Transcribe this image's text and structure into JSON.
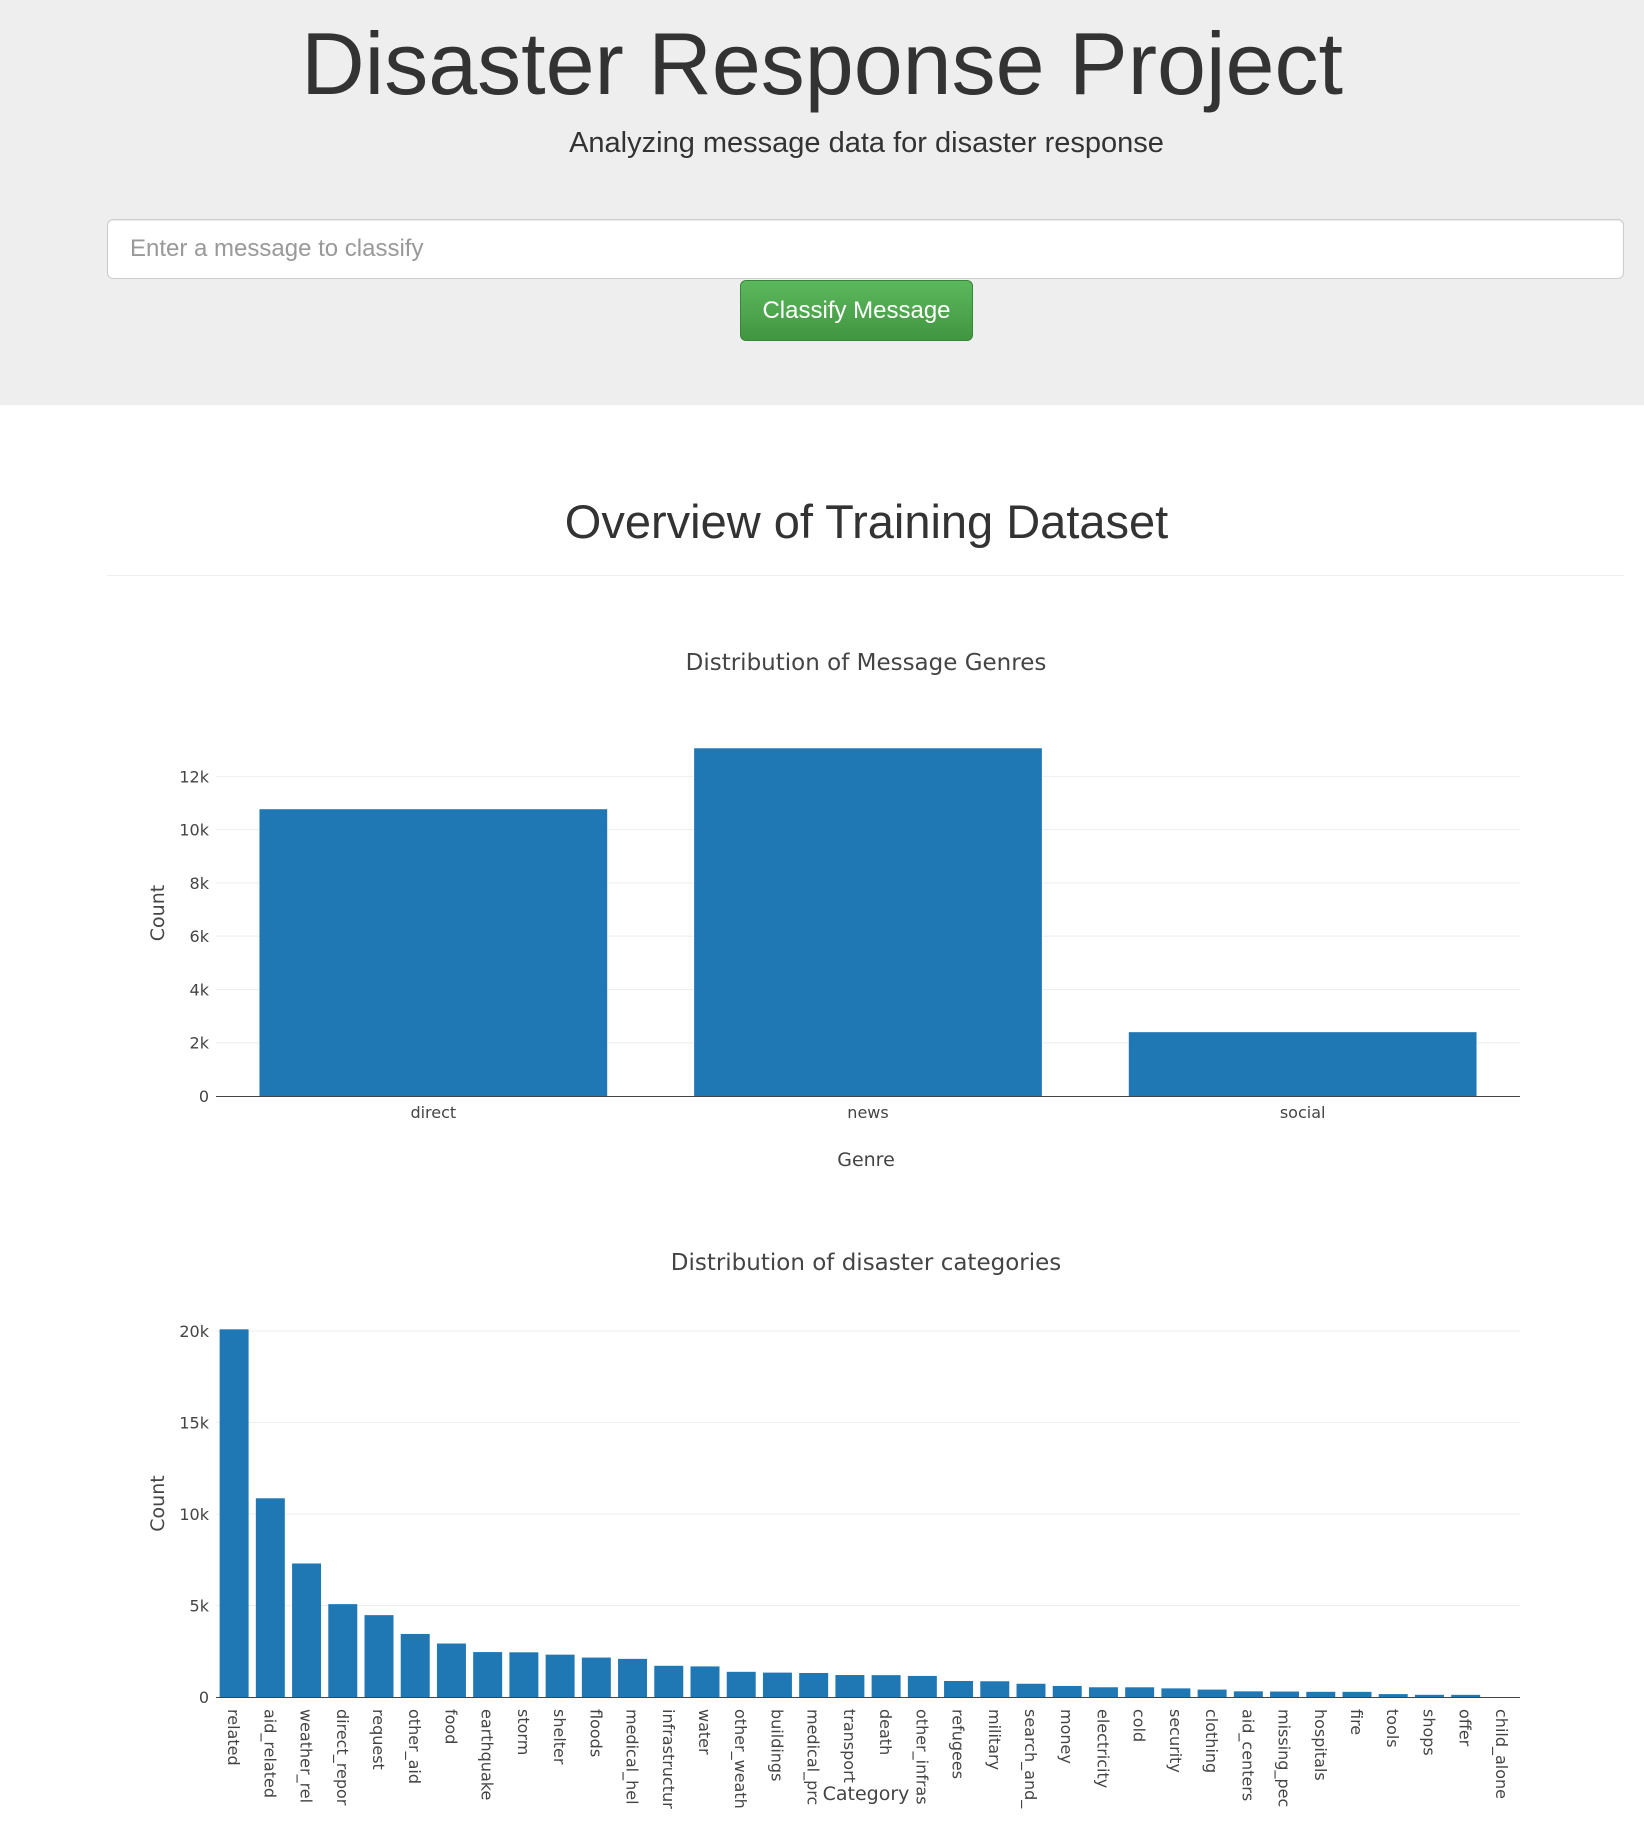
{
  "header": {
    "title": "Disaster Response Project",
    "subtitle": "Analyzing message data for disaster response"
  },
  "classifier": {
    "placeholder": "Enter a message to classify",
    "button_label": "Classify Message"
  },
  "overview": {
    "title": "Overview of Training Dataset"
  },
  "colors": {
    "bar": "#1f77b4",
    "button": "#5cb85c",
    "jumbotron_bg": "#eeeeee"
  },
  "chart_data": [
    {
      "type": "bar",
      "title": "Distribution of Message Genres",
      "xlabel": "Genre",
      "ylabel": "Count",
      "categories": [
        "direct",
        "news",
        "social"
      ],
      "values": [
        10766,
        13054,
        2396
      ],
      "ylim": [
        0,
        13740
      ],
      "yticks": [
        0,
        2000,
        4000,
        6000,
        8000,
        10000,
        12000
      ],
      "ytick_labels": [
        "0",
        "2k",
        "4k",
        "6k",
        "8k",
        "10k",
        "12k"
      ],
      "grid": true
    },
    {
      "type": "bar",
      "title": "Distribution of disaster categories",
      "xlabel": "Category",
      "ylabel": "Count",
      "categories": [
        "related",
        "aid_related",
        "weather_rel",
        "direct_repor",
        "request",
        "other_aid",
        "food",
        "earthquake",
        "storm",
        "shelter",
        "floods",
        "medical_hel",
        "infrastructur",
        "water",
        "other_weath",
        "buildings",
        "medical_prc",
        "transport",
        "death",
        "other_infras",
        "refugees",
        "military",
        "search_and_",
        "money",
        "electricity",
        "cold",
        "security",
        "clothing",
        "aid_centers",
        "missing_pec",
        "hospitals",
        "fire",
        "tools",
        "shops",
        "offer",
        "child_alone"
      ],
      "values": [
        20094,
        10860,
        7297,
        5075,
        4474,
        3446,
        2923,
        2455,
        2443,
        2314,
        2155,
        2084,
        1705,
        1672,
        1376,
        1333,
        1313,
        1201,
        1194,
        1151,
        875,
        860,
        724,
        604,
        532,
        530,
        471,
        405,
        309,
        298,
        283,
        282,
        159,
        120,
        118,
        0
      ],
      "ylim": [
        0,
        21150
      ],
      "yticks": [
        0,
        5000,
        10000,
        15000,
        20000
      ],
      "ytick_labels": [
        "0",
        "5k",
        "10k",
        "15k",
        "20k"
      ],
      "grid": true
    }
  ]
}
